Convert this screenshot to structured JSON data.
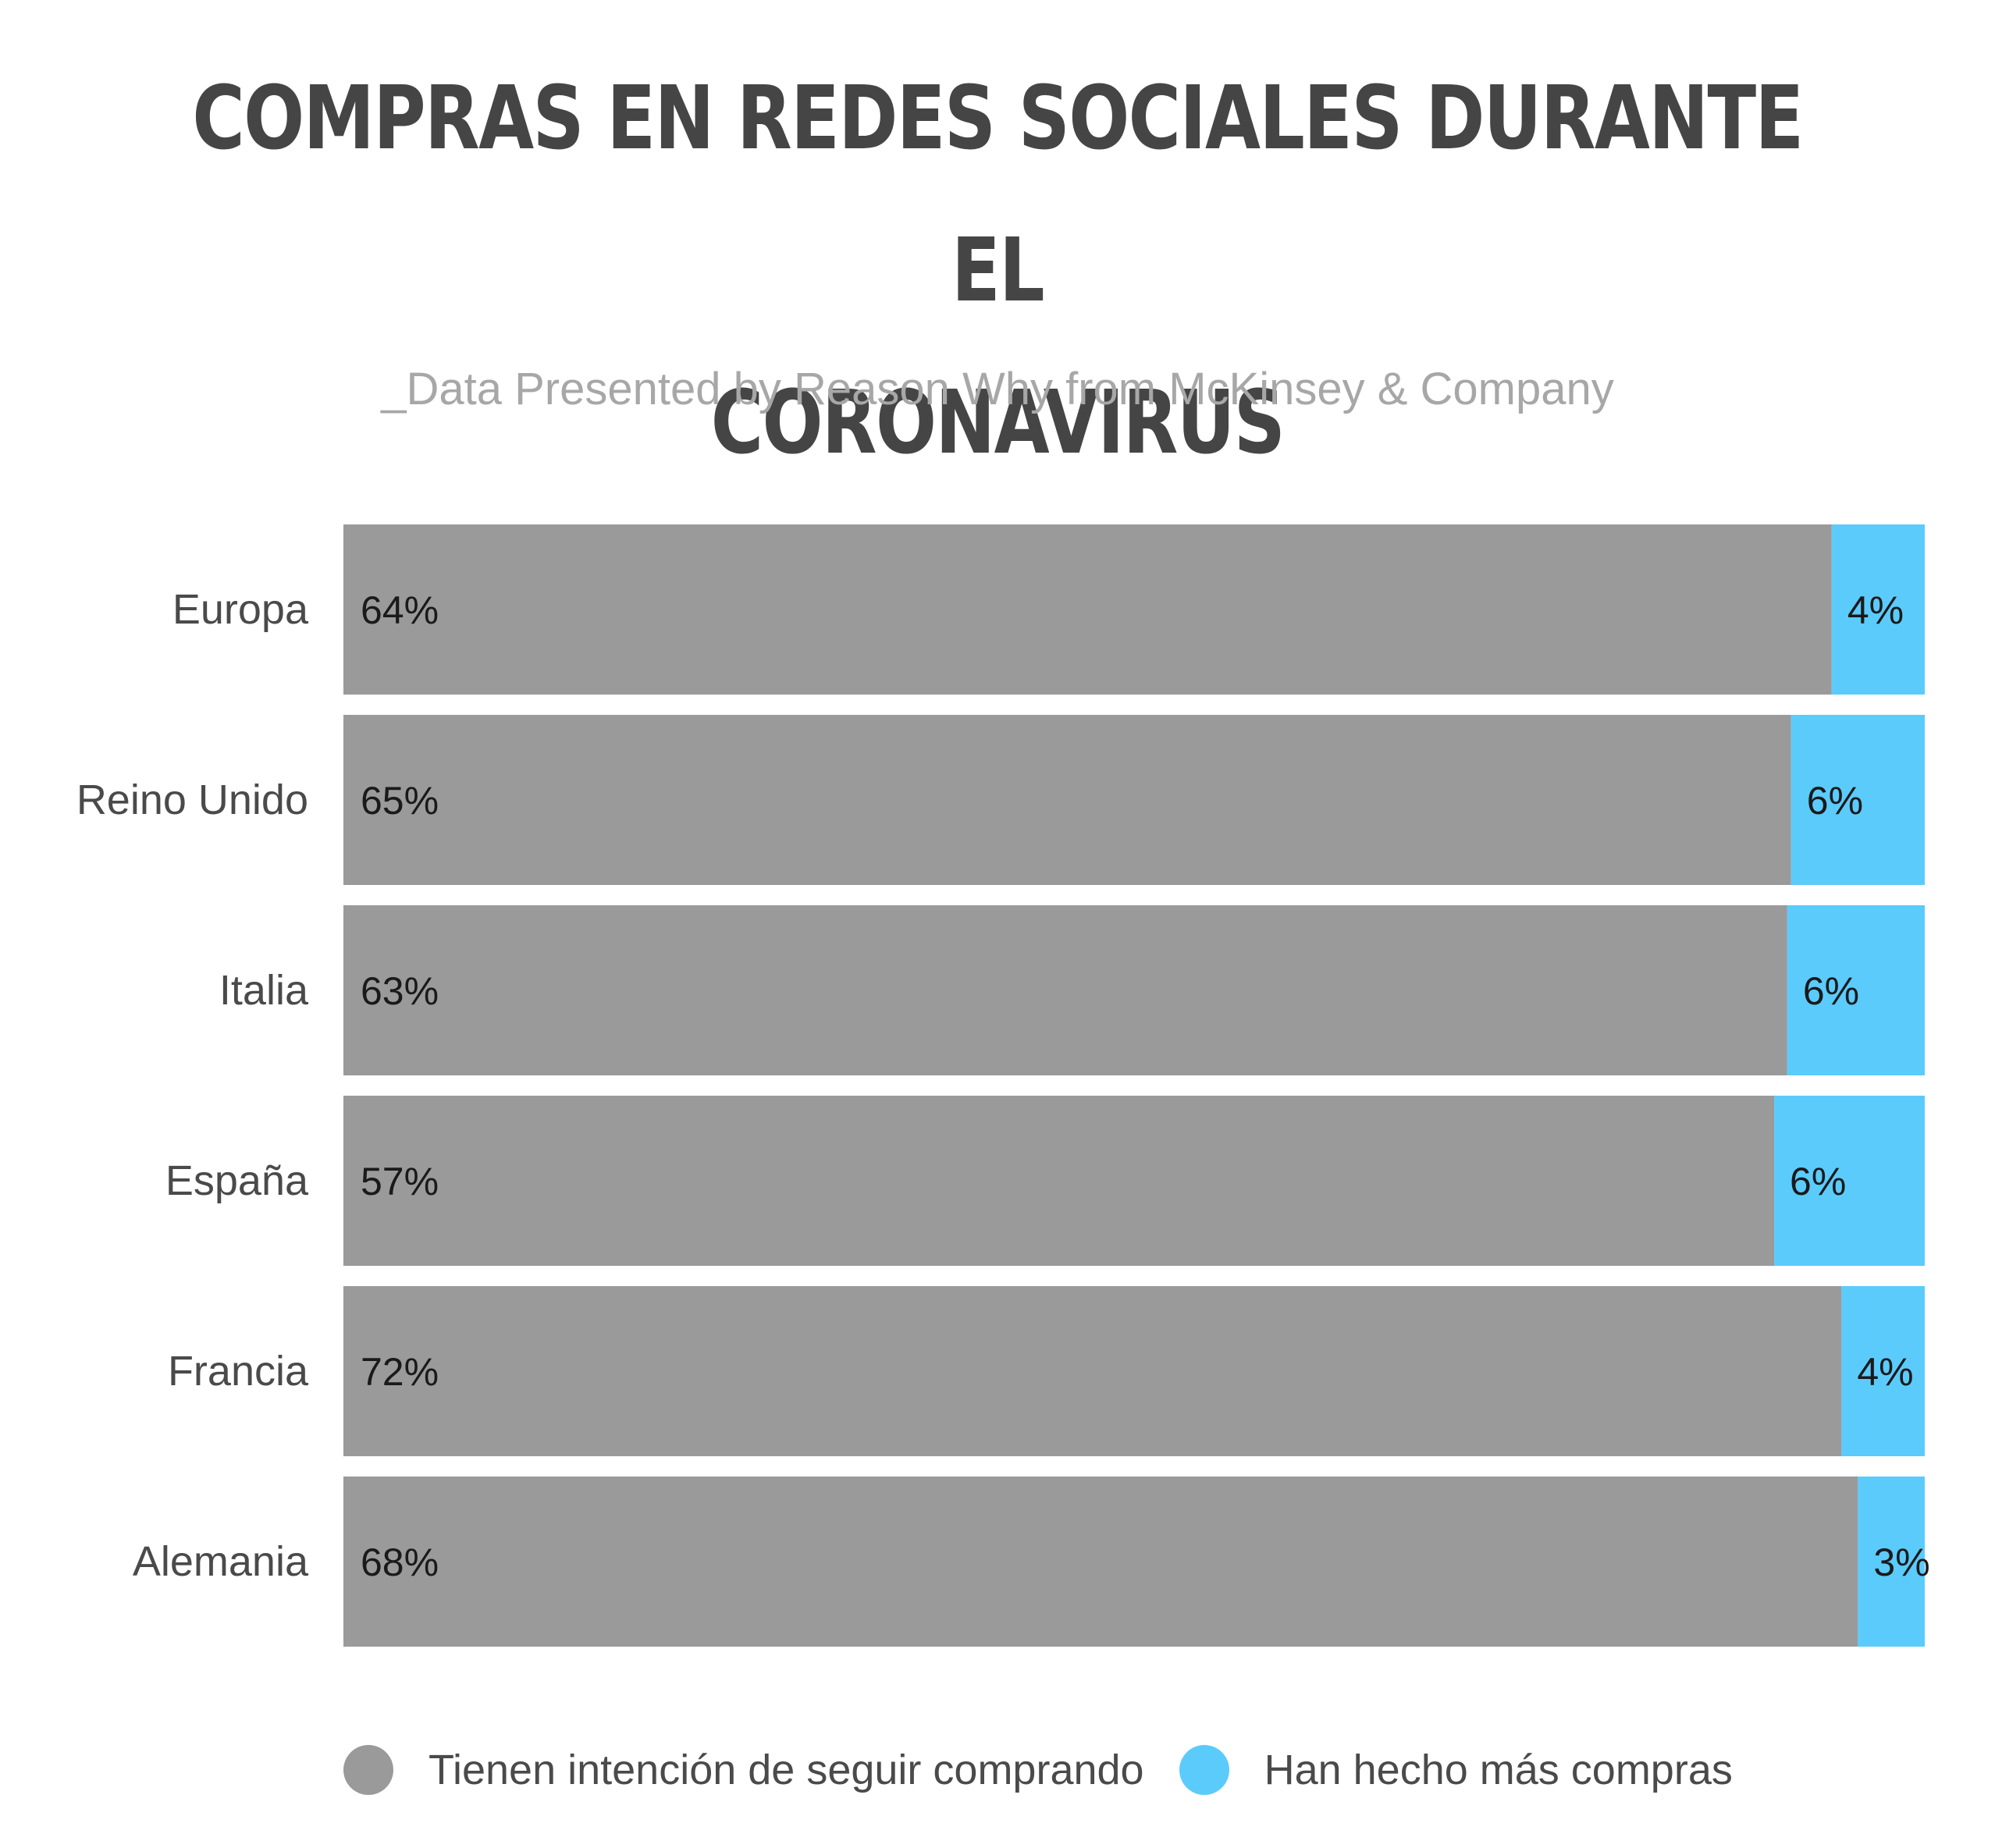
{
  "title_line1": "COMPRAS EN REDES SOCIALES DURANTE EL",
  "title_line2": "CORONAVIRUS",
  "subtitle": "_Data Presented by Reason Why from McKinsey & Company",
  "colors": {
    "series1": "#9a9a9a",
    "series2": "#5bcbfc",
    "category_label": "#4a4a4a",
    "value_label": "#1a1a1a"
  },
  "legend": {
    "position": "bottom",
    "items": [
      {
        "label": "Tienen intención de seguir comprando",
        "color": "#9a9a9a"
      },
      {
        "label": "Han hecho más compras",
        "color": "#5bcbfc"
      }
    ]
  },
  "chart_data": {
    "type": "bar",
    "orientation": "horizontal",
    "stacked": "100%",
    "categories": [
      "Europa",
      "Reino Unido",
      "Italia",
      "España",
      "Francia",
      "Alemania"
    ],
    "series": [
      {
        "name": "Tienen intención de seguir comprando",
        "values": [
          64,
          65,
          63,
          57,
          72,
          68
        ],
        "labels": [
          "64%",
          "65%",
          "63%",
          "57%",
          "72%",
          "68%"
        ]
      },
      {
        "name": "Han hecho más compras",
        "values": [
          4,
          6,
          6,
          6,
          4,
          3
        ],
        "labels": [
          "4%",
          "6%",
          "6%",
          "6%",
          "4%",
          "3%"
        ]
      }
    ],
    "title": "COMPRAS EN REDES SOCIALES DURANTE EL CORONAVIRUS",
    "subtitle": "_Data Presented by Reason Why from McKinsey & Company",
    "grid": false
  }
}
